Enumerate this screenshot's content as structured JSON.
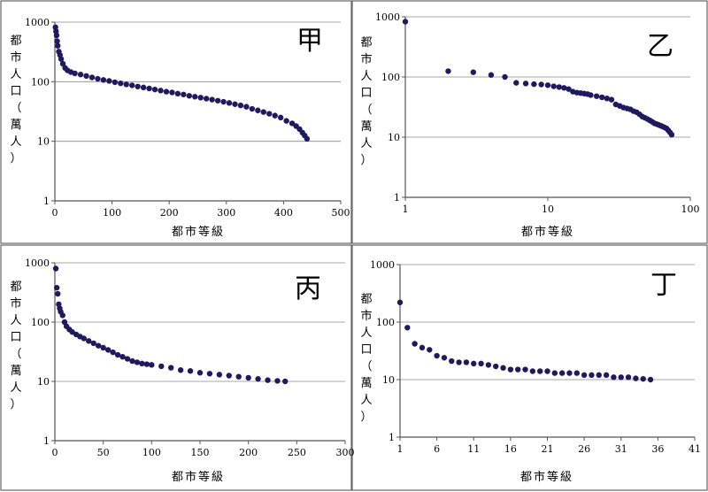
{
  "colors": {
    "marker": "#1f1a5e",
    "grid": "#8a8a8a",
    "frame": "#555555",
    "text": "#000000"
  },
  "chart_data": [
    {
      "type": "scatter",
      "title": "甲",
      "xlabel": "都市等級",
      "ylabel": "都市人口（萬人）",
      "y_scale": "log",
      "ylim": [
        1,
        1000
      ],
      "y_ticks": [
        "1",
        "10",
        "100",
        "1000"
      ],
      "x_scale": "linear",
      "xlim": [
        0,
        500
      ],
      "x_ticks": [
        "0",
        "100",
        "200",
        "300",
        "400",
        "500"
      ],
      "series": [
        {
          "points": [
            [
              1,
              820
            ],
            [
              2,
              700
            ],
            [
              3,
              600
            ],
            [
              4,
              480
            ],
            [
              5,
              400
            ],
            [
              7,
              320
            ],
            [
              9,
              280
            ],
            [
              11,
              240
            ],
            [
              14,
              200
            ],
            [
              18,
              170
            ],
            [
              22,
              155
            ],
            [
              28,
              145
            ],
            [
              35,
              138
            ],
            [
              45,
              132
            ],
            [
              55,
              125
            ],
            [
              65,
              118
            ],
            [
              75,
              112
            ],
            [
              85,
              107
            ],
            [
              95,
              103
            ],
            [
              105,
              98
            ],
            [
              115,
              94
            ],
            [
              125,
              90
            ],
            [
              135,
              87
            ],
            [
              145,
              83
            ],
            [
              155,
              80
            ],
            [
              165,
              77
            ],
            [
              175,
              74
            ],
            [
              185,
              71
            ],
            [
              195,
              68
            ],
            [
              205,
              66
            ],
            [
              215,
              63
            ],
            [
              225,
              61
            ],
            [
              235,
              58
            ],
            [
              245,
              56
            ],
            [
              255,
              54
            ],
            [
              265,
              52
            ],
            [
              275,
              50
            ],
            [
              285,
              48
            ],
            [
              295,
              46
            ],
            [
              305,
              44
            ],
            [
              315,
              42
            ],
            [
              325,
              40
            ],
            [
              335,
              38
            ],
            [
              345,
              35
            ],
            [
              355,
              33
            ],
            [
              365,
              31
            ],
            [
              375,
              29
            ],
            [
              385,
              27
            ],
            [
              395,
              25
            ],
            [
              405,
              22
            ],
            [
              415,
              20
            ],
            [
              422,
              18
            ],
            [
              428,
              16
            ],
            [
              433,
              14
            ],
            [
              437,
              12.5
            ],
            [
              441,
              11
            ]
          ]
        }
      ]
    },
    {
      "type": "scatter",
      "title": "乙",
      "xlabel": "都市等級",
      "ylabel": "都市人口（萬人）",
      "y_scale": "log",
      "ylim": [
        1,
        1000
      ],
      "y_ticks": [
        "1",
        "10",
        "100",
        "1000"
      ],
      "x_scale": "log",
      "xlim": [
        1,
        100
      ],
      "x_ticks": [
        "1",
        "10",
        "100"
      ],
      "series": [
        {
          "points": [
            [
              1,
              830
            ],
            [
              2,
              125
            ],
            [
              3,
              120
            ],
            [
              4,
              108
            ],
            [
              5,
              100
            ],
            [
              6,
              80
            ],
            [
              7,
              78
            ],
            [
              8,
              76
            ],
            [
              9,
              75
            ],
            [
              10,
              73
            ],
            [
              11,
              70
            ],
            [
              12,
              68
            ],
            [
              13,
              66
            ],
            [
              14,
              63
            ],
            [
              15,
              57
            ],
            [
              16,
              55
            ],
            [
              17,
              54
            ],
            [
              18,
              53
            ],
            [
              19,
              52
            ],
            [
              20,
              50
            ],
            [
              22,
              48
            ],
            [
              24,
              46
            ],
            [
              26,
              44
            ],
            [
              28,
              42
            ],
            [
              30,
              35
            ],
            [
              32,
              33
            ],
            [
              34,
              31
            ],
            [
              36,
              30
            ],
            [
              38,
              29
            ],
            [
              40,
              27
            ],
            [
              42,
              26
            ],
            [
              44,
              24
            ],
            [
              46,
              22
            ],
            [
              48,
              21
            ],
            [
              50,
              20
            ],
            [
              52,
              19
            ],
            [
              54,
              18
            ],
            [
              56,
              17
            ],
            [
              58,
              16.5
            ],
            [
              60,
              16
            ],
            [
              62,
              15.5
            ],
            [
              64,
              15
            ],
            [
              66,
              14.5
            ],
            [
              68,
              14
            ],
            [
              70,
              13
            ],
            [
              72,
              12
            ],
            [
              74,
              11
            ]
          ]
        }
      ]
    },
    {
      "type": "scatter",
      "title": "丙",
      "xlabel": "都市等級",
      "ylabel": "都市人口（萬人）",
      "y_scale": "log",
      "ylim": [
        1,
        1000
      ],
      "y_ticks": [
        "1",
        "10",
        "100",
        "1000"
      ],
      "x_scale": "linear",
      "xlim": [
        0,
        300
      ],
      "x_ticks": [
        "0",
        "50",
        "100",
        "150",
        "200",
        "250",
        "300"
      ],
      "series": [
        {
          "points": [
            [
              1,
              800
            ],
            [
              2,
              380
            ],
            [
              3,
              300
            ],
            [
              4,
              200
            ],
            [
              5,
              170
            ],
            [
              6,
              150
            ],
            [
              8,
              130
            ],
            [
              10,
              100
            ],
            [
              12,
              85
            ],
            [
              15,
              75
            ],
            [
              18,
              68
            ],
            [
              22,
              62
            ],
            [
              26,
              57
            ],
            [
              30,
              53
            ],
            [
              35,
              48
            ],
            [
              40,
              44
            ],
            [
              45,
              40
            ],
            [
              50,
              37
            ],
            [
              55,
              34
            ],
            [
              60,
              31
            ],
            [
              65,
              28
            ],
            [
              70,
              26
            ],
            [
              75,
              24
            ],
            [
              80,
              22
            ],
            [
              85,
              21
            ],
            [
              90,
              20
            ],
            [
              95,
              19.5
            ],
            [
              100,
              19
            ],
            [
              110,
              18
            ],
            [
              120,
              17
            ],
            [
              130,
              15.5
            ],
            [
              140,
              15
            ],
            [
              150,
              14
            ],
            [
              160,
              13.5
            ],
            [
              170,
              13
            ],
            [
              180,
              12.5
            ],
            [
              190,
              12
            ],
            [
              200,
              11.5
            ],
            [
              210,
              11
            ],
            [
              220,
              10.5
            ],
            [
              230,
              10.2
            ],
            [
              238,
              10
            ]
          ]
        }
      ]
    },
    {
      "type": "scatter",
      "title": "丁",
      "xlabel": "都市等級",
      "ylabel": "都市人口（萬人）",
      "y_scale": "log",
      "ylim": [
        1,
        1000
      ],
      "y_ticks": [
        "1",
        "10",
        "100",
        "1000"
      ],
      "x_scale": "linear",
      "xlim": [
        1,
        41
      ],
      "x_ticks": [
        "1",
        "6",
        "11",
        "16",
        "21",
        "26",
        "31",
        "36",
        "41"
      ],
      "series": [
        {
          "points": [
            [
              1,
              220
            ],
            [
              2,
              80
            ],
            [
              3,
              42
            ],
            [
              4,
              36
            ],
            [
              5,
              33
            ],
            [
              6,
              26
            ],
            [
              7,
              24
            ],
            [
              8,
              21
            ],
            [
              9,
              20
            ],
            [
              10,
              20
            ],
            [
              11,
              19
            ],
            [
              12,
              19
            ],
            [
              13,
              18
            ],
            [
              14,
              17
            ],
            [
              15,
              16
            ],
            [
              16,
              15
            ],
            [
              17,
              15
            ],
            [
              18,
              15
            ],
            [
              19,
              14
            ],
            [
              20,
              14
            ],
            [
              21,
              14
            ],
            [
              22,
              13
            ],
            [
              23,
              13
            ],
            [
              24,
              13
            ],
            [
              25,
              13
            ],
            [
              26,
              12
            ],
            [
              27,
              12
            ],
            [
              28,
              12
            ],
            [
              29,
              12
            ],
            [
              30,
              11
            ],
            [
              31,
              11
            ],
            [
              32,
              11
            ],
            [
              33,
              10.5
            ],
            [
              34,
              10.3
            ],
            [
              35,
              10
            ]
          ]
        }
      ]
    }
  ]
}
